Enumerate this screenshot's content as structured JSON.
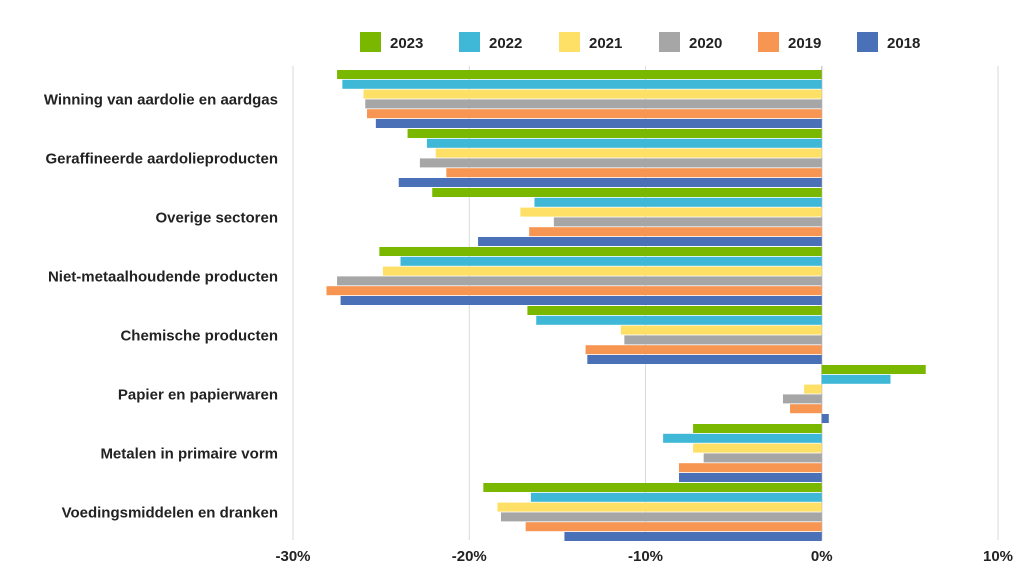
{
  "chart_data": {
    "type": "bar",
    "orientation": "horizontal",
    "categories": [
      "Winning van aardolie en aardgas",
      "Geraffineerde aardolieproducten",
      "Overige sectoren",
      "Niet-metaalhoudende producten",
      "Chemische producten",
      "Papier en papierwaren",
      "Metalen in primaire vorm",
      "Voedingsmiddelen en dranken"
    ],
    "series": [
      {
        "name": "2023",
        "color": "#7ab800",
        "values": [
          -27.5,
          -23.5,
          -22.1,
          -25.1,
          -16.7,
          5.9,
          -7.3,
          -19.2
        ]
      },
      {
        "name": "2022",
        "color": "#3fb8d8",
        "values": [
          -27.2,
          -22.4,
          -16.3,
          -23.9,
          -16.2,
          3.9,
          -9.0,
          -16.5
        ]
      },
      {
        "name": "2021",
        "color": "#ffe066",
        "values": [
          -26.0,
          -21.9,
          -17.1,
          -24.9,
          -11.4,
          -1.0,
          -7.3,
          -18.4
        ]
      },
      {
        "name": "2020",
        "color": "#a6a6a6",
        "values": [
          -25.9,
          -22.8,
          -15.2,
          -27.5,
          -11.2,
          -2.2,
          -6.7,
          -18.2
        ]
      },
      {
        "name": "2019",
        "color": "#f79552",
        "values": [
          -25.8,
          -21.3,
          -16.6,
          -28.1,
          -13.4,
          -1.8,
          -8.1,
          -16.8
        ]
      },
      {
        "name": "2018",
        "color": "#4a70b8",
        "values": [
          -25.3,
          -24.0,
          -19.5,
          -27.3,
          -13.3,
          0.4,
          -8.1,
          -14.6
        ]
      }
    ],
    "xticks": [
      "-30%",
      "-20%",
      "-10%",
      "0%",
      "10%"
    ],
    "xlim": [
      -30,
      10
    ],
    "legend_position": "top",
    "grid": "vertical",
    "title": "",
    "xlabel": "",
    "ylabel": ""
  }
}
